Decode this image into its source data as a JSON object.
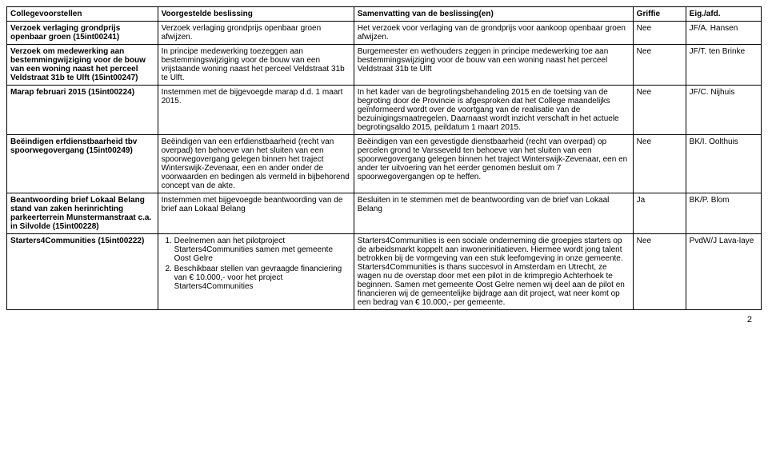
{
  "headers": {
    "c1": "Collegevoorstellen",
    "c2": "Voorgestelde beslissing",
    "c3": "Samenvatting van de beslissing(en)",
    "c4": "Griffie",
    "c5": "Eig./afd."
  },
  "rows": [
    {
      "c1": "Verzoek verlaging grondprijs openbaar groen (15int00241)",
      "c2": "Verzoek verlaging grondprijs openbaar groen afwijzen.",
      "c3": "Het verzoek voor verlaging van de grondprijs voor aankoop openbaar groen afwijzen.",
      "c4": "Nee",
      "c5": "JF/A. Hansen"
    },
    {
      "c1": "Verzoek om medewerking aan bestemmingwijziging voor de bouw van een woning naast het perceel Veldstraat 31b te Ulft (15int00247)",
      "c2": "In principe medewerking toezeggen aan bestemmingswijziging voor de bouw van een vrijstaande woning naast het perceel Veldstraat 31b te Ulft.",
      "c3": "Burgemeester en wethouders zeggen in principe medewerking toe aan bestemmingswijziging voor de bouw van een woning naast het perceel Veldstraat 31b te Ulft",
      "c4": "Nee",
      "c5": "JF/T. ten Brinke"
    },
    {
      "c1": "Marap februari 2015 (15int00224)",
      "c2": "Instemmen met de bijgevoegde marap d.d. 1 maart 2015.",
      "c3": "In het kader van de begrotingsbehandeling 2015 en de toetsing van de begroting door de Provincie is afgesproken dat het College maandelijks geïnformeerd wordt over de voortgang van de realisatie van de bezuinigingsmaatregelen. Daarnaast wordt inzicht verschaft in het actuele begrotingsaldo 2015, peildatum 1 maart 2015.",
      "c4": "Nee",
      "c5": "JF/C. Nijhuis"
    },
    {
      "c1": "Beëindigen erfdienstbaarheid tbv spoorwegovergang (15int00249)",
      "c2": "Beëindigen van een erfdienstbaarheid (recht van overpad) ten behoeve van het sluiten van een spoorwegovergang gelegen binnen het traject Winterswijk-Zevenaar, een en ander onder de voorwaarden en bedingen als vermeld in bijbehorend concept van de akte.",
      "c3": "Beëindigen van een gevestigde dienstbaarheid (recht van overpad) op percelen grond te Varsseveld ten behoeve van het sluiten van een spoorwegovergang gelegen binnen het traject Winterswijk-Zevenaar, een en ander ter uitvoering van het eerder genomen besluit om 7 spoorwegovergangen op te heffen.",
      "c4": "Nee",
      "c5": "BK/I. Oolthuis"
    },
    {
      "c1": "Beantwoording brief Lokaal Belang stand van zaken herinrichting parkeerterrein Munstermanstraat c.a. in Silvolde (15int00228)",
      "c2": "Instemmen met bijgevoegde beantwoording van de brief aan Lokaal Belang",
      "c3": "Besluiten in te stemmen met de beantwoording van de brief van Lokaal Belang",
      "c4": "Ja",
      "c5": "BK/P. Blom"
    },
    {
      "c1": "Starters4Communities (15int00222)",
      "c2_list_1": "Deelnemen aan het pilotproject Starters4Communities samen met gemeente Oost Gelre",
      "c2_list_2": "Beschikbaar stellen van gevraagde financiering van € 10.000,- voor het project Starters4Communities",
      "c3": "Starters4Communities is een sociale onderneming die groepjes starters op de arbeidsmarkt koppelt aan inwonerinitiatieven. Hiermee wordt jong talent betrokken bij de vormgeving van een stuk leefomgeving in onze gemeente. Starters4Communities is thans succesvol in Amsterdam en Utrecht, ze wagen nu de overstap door met een pilot in de krimpregio Achterhoek te beginnen. Samen met gemeente Oost Gelre nemen wij deel aan de pilot en financieren wij de gemeentelijke bijdrage aan dit project, wat neer komt op een bedrag van € 10.000,- per gemeente.",
      "c4": "Nee",
      "c5": "PvdW/J Lava-laye"
    }
  ],
  "page_number": "2"
}
